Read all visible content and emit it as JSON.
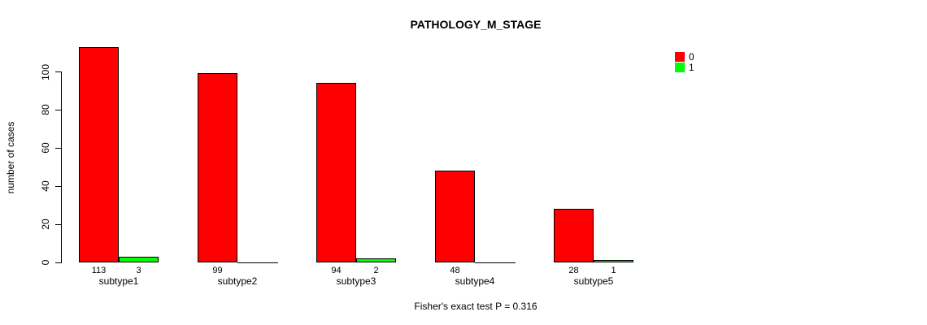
{
  "title": "PATHOLOGY_M_STAGE",
  "footnote": "Fisher's exact test P = 0.316",
  "ylabel": "number of cases",
  "colors": {
    "series0": "#FF0000",
    "series1": "#00FF00",
    "axis": "#000000",
    "background": "#FFFFFF"
  },
  "legend": {
    "items": [
      {
        "label": "0",
        "color": "#FF0000"
      },
      {
        "label": "1",
        "color": "#00FF00"
      }
    ]
  },
  "chart_data": {
    "type": "bar",
    "title": "PATHOLOGY_M_STAGE",
    "xlabel": "",
    "ylabel": "number of cases",
    "categories": [
      "subtype1",
      "subtype2",
      "subtype3",
      "subtype4",
      "subtype5"
    ],
    "series": [
      {
        "name": "0",
        "color": "#FF0000",
        "values": [
          113,
          99,
          94,
          48,
          28
        ]
      },
      {
        "name": "1",
        "color": "#00FF00",
        "values": [
          3,
          0,
          2,
          0,
          1
        ]
      }
    ],
    "bar_value_labels": [
      [
        "113",
        "99",
        "94",
        "48",
        "28"
      ],
      [
        "3",
        "",
        "2",
        "",
        "1"
      ]
    ],
    "yticks": [
      0,
      20,
      40,
      60,
      80,
      100
    ],
    "ylim": [
      0,
      113
    ],
    "grid": false,
    "legend_position": "top-right",
    "annotation": "Fisher's exact test P = 0.316"
  }
}
